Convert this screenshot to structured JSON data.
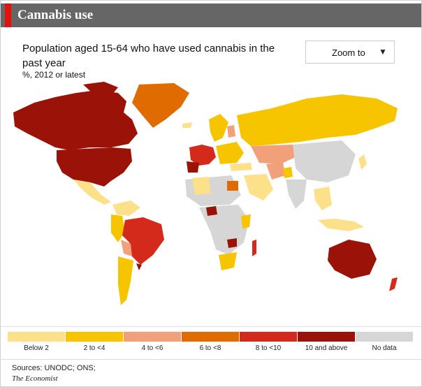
{
  "header": {
    "title": "Cannabis use"
  },
  "chart": {
    "title": "Population aged 15-64 who have used cannabis in the past year",
    "subtitle": "%, 2012 or latest"
  },
  "zoom": {
    "label": "Zoom to",
    "arrow_icon": "triangle-down-icon"
  },
  "colors": {
    "accent": "#e3120b",
    "header_bg": "#666666",
    "below2": "#fde08a",
    "b2to4": "#f7c500",
    "b4to6": "#f2a07a",
    "b6to8": "#e06b00",
    "b8to10": "#d42a1c",
    "b10plus": "#9b1208",
    "nodata": "#d6d6d6"
  },
  "legend": [
    {
      "label": "Below 2",
      "color": "#fde08a"
    },
    {
      "label": "2 to <4",
      "color": "#f7c500"
    },
    {
      "label": "4 to <6",
      "color": "#f2a07a"
    },
    {
      "label": "6 to <8",
      "color": "#e06b00"
    },
    {
      "label": "8 to <10",
      "color": "#d42a1c"
    },
    {
      "label": "10 and above",
      "color": "#9b1208"
    },
    {
      "label": "No data",
      "color": "#d6d6d6"
    }
  ],
  "sources": {
    "line1": "Sources: UNODC; ONS;",
    "line2": "The Economist"
  }
}
